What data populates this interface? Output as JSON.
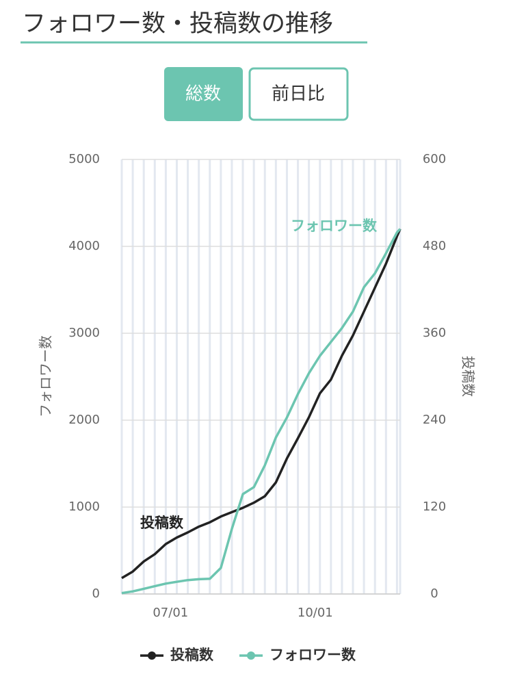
{
  "header": {
    "title": "フォロワー数・投稿数の推移"
  },
  "tabs": [
    "総数",
    "前日比"
  ],
  "chart_data": {
    "type": "line",
    "x": [
      "05/31",
      "06/07",
      "06/14",
      "06/21",
      "06/28",
      "07/05",
      "07/12",
      "07/19",
      "07/26",
      "08/02",
      "08/09",
      "08/16",
      "08/23",
      "08/30",
      "09/06",
      "09/13",
      "09/20",
      "09/27",
      "10/04",
      "10/11",
      "10/18",
      "10/25",
      "11/01",
      "11/08",
      "11/15",
      "11/22",
      "11/24"
    ],
    "xlim": [
      "05/31",
      "11/24"
    ],
    "xticks": [
      "07/01",
      "10/01"
    ],
    "series": [
      {
        "name": "投稿数",
        "color": "#222222",
        "axis": "y2",
        "values": [
          22,
          31,
          45,
          55,
          69,
          78,
          85,
          93,
          99,
          107,
          113,
          119,
          126,
          135,
          154,
          187,
          215,
          244,
          277,
          296,
          329,
          357,
          390,
          423,
          456,
          494,
          504
        ]
      },
      {
        "name": "フォロワー数",
        "color": "#6cc5b0",
        "values": [
          10,
          30,
          60,
          90,
          120,
          140,
          160,
          170,
          175,
          300,
          750,
          1150,
          1230,
          1480,
          1800,
          2030,
          2300,
          2540,
          2740,
          2900,
          3060,
          3250,
          3530,
          3690,
          3920,
          4160,
          4200
        ]
      }
    ],
    "ylabel": "フォロワー数",
    "y2label": "投稿数",
    "ylim": [
      0,
      5000
    ],
    "yticks": [
      0,
      1000,
      2000,
      3000,
      4000,
      5000
    ],
    "y2lim": [
      0,
      600
    ],
    "y2ticks": [
      0,
      120,
      240,
      360,
      480,
      600
    ],
    "annotations": [
      "投稿数",
      "フォロワー数"
    ],
    "grid": true
  }
}
